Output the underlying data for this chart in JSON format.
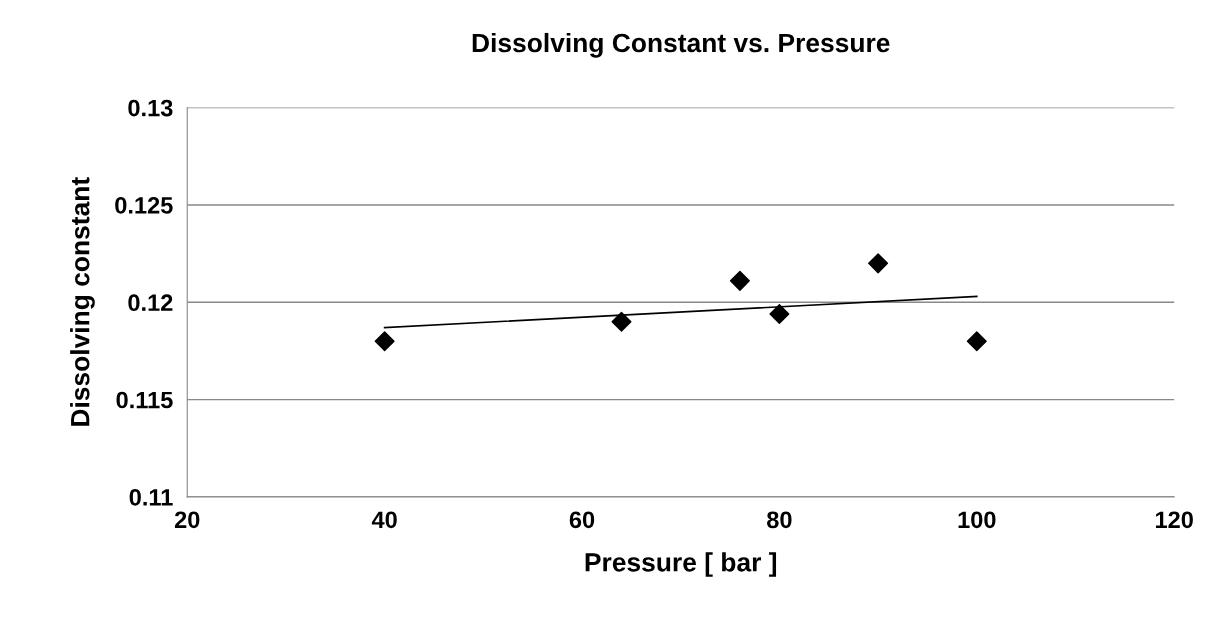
{
  "chart_data": {
    "type": "scatter",
    "title": "Dissolving Constant vs. Pressure",
    "xlabel": "Pressure [ bar ]",
    "ylabel": "Dissolving constant",
    "series": [
      {
        "color": "#000000",
        "marker": "diamond",
        "x": [
          40,
          64,
          76,
          80,
          90,
          100
        ],
        "values": [
          0.118,
          0.119,
          0.1211,
          0.1194,
          0.122,
          0.118
        ]
      },
      {
        "type": "line",
        "color": "#000000",
        "marker": "none",
        "line_style": "solid",
        "x": [
          40,
          100
        ],
        "values": [
          0.1187,
          0.1203
        ]
      }
    ],
    "xlim": [
      20,
      120
    ],
    "xticks": [
      20,
      40,
      60,
      80,
      100,
      120
    ],
    "ylim": [
      0.11,
      0.13
    ],
    "yticks": [
      0.11,
      0.115,
      0.12,
      0.125,
      0.13
    ],
    "grid": "y",
    "legend": false
  }
}
